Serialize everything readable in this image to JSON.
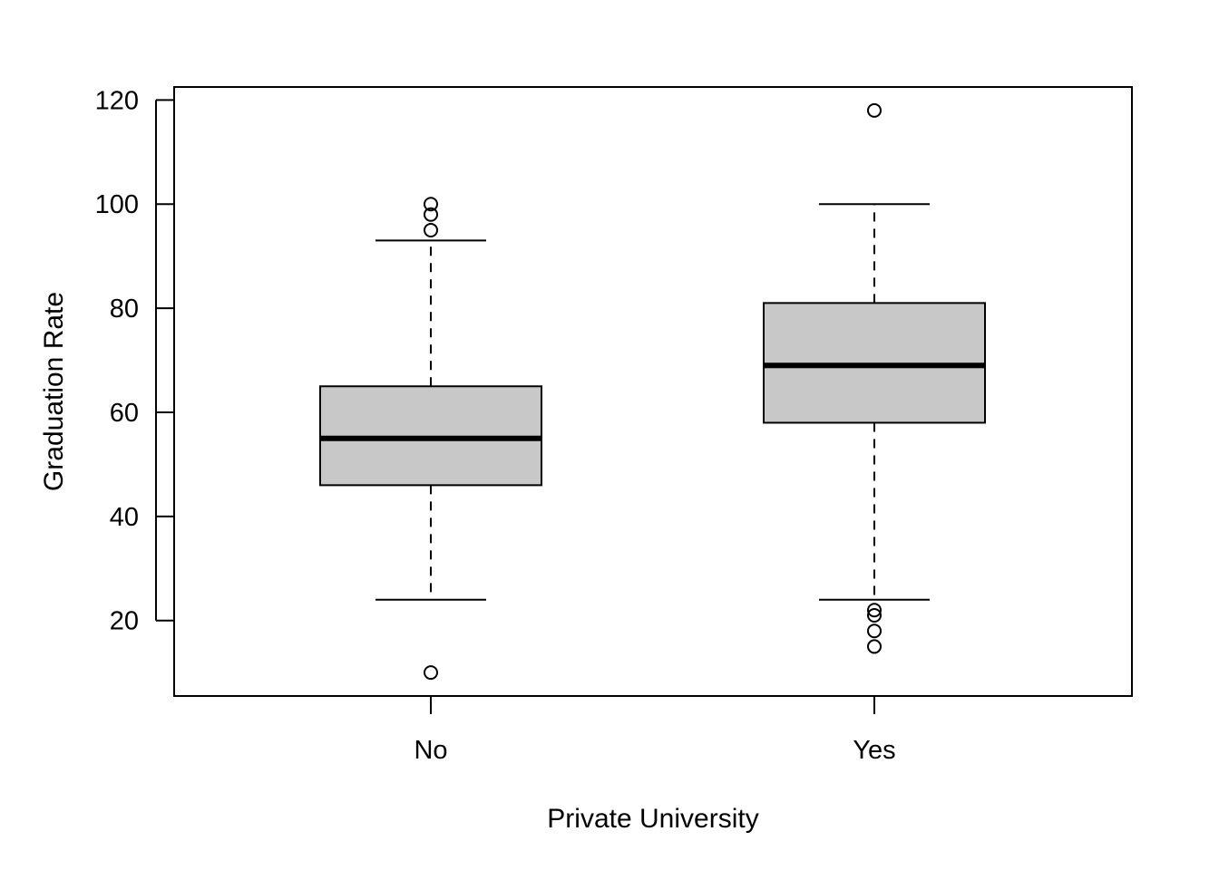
{
  "chart_data": {
    "type": "boxplot",
    "xlabel": "Private University",
    "ylabel": "Graduation Rate",
    "categories": [
      "No",
      "Yes"
    ],
    "ylim": [
      5.5,
      122.5
    ],
    "yticks": [
      20,
      40,
      60,
      80,
      100,
      120
    ],
    "box_fill": "#c8c8c8",
    "grid": false,
    "boxes": [
      {
        "category": "No",
        "whisker_low": 24,
        "q1": 46,
        "median": 55,
        "q3": 65,
        "whisker_high": 93,
        "outliers": [
          10,
          95,
          98,
          100
        ]
      },
      {
        "category": "Yes",
        "whisker_low": 24,
        "q1": 58,
        "median": 69,
        "q3": 81,
        "whisker_high": 100,
        "outliers": [
          15,
          18,
          21,
          22,
          118
        ]
      }
    ]
  }
}
